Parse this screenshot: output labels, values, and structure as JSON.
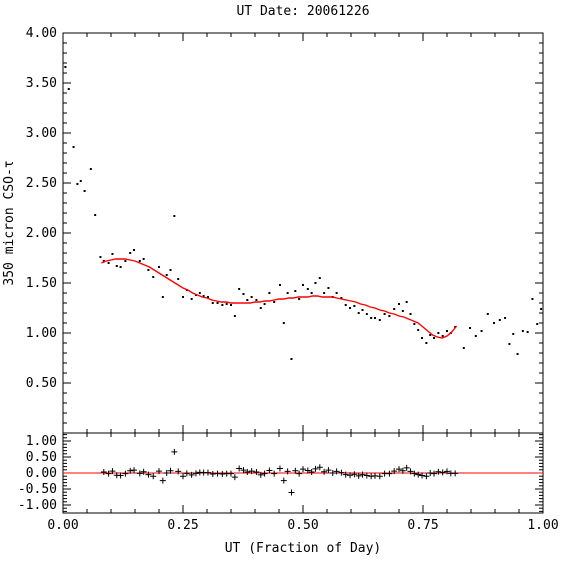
{
  "chart_data": [
    {
      "type": "scatter",
      "title": "UT Date: 20061226",
      "ylabel": "350 micron CSO-τ",
      "xlim": [
        0.0,
        1.0
      ],
      "ylim": [
        0.0,
        4.0
      ],
      "y_ticks": [
        "4.00",
        "3.50",
        "3.00",
        "2.50",
        "2.00",
        "1.50",
        "1.00",
        "0.50"
      ],
      "grid": false,
      "colors": {
        "points": "#000000",
        "fit": "#ff0000"
      },
      "series": [
        {
          "points": [
            [
              0.005,
              3.66
            ],
            [
              0.012,
              3.44
            ],
            [
              0.022,
              2.86
            ],
            [
              0.03,
              2.49
            ],
            [
              0.037,
              2.52
            ],
            [
              0.045,
              2.42
            ],
            [
              0.058,
              2.64
            ],
            [
              0.067,
              2.18
            ],
            [
              0.078,
              1.76
            ],
            [
              0.085,
              1.72
            ],
            [
              0.095,
              1.7
            ],
            [
              0.103,
              1.79
            ],
            [
              0.112,
              1.67
            ],
            [
              0.12,
              1.66
            ],
            [
              0.13,
              1.72
            ],
            [
              0.14,
              1.8
            ],
            [
              0.148,
              1.83
            ],
            [
              0.16,
              1.72
            ],
            [
              0.168,
              1.74
            ],
            [
              0.178,
              1.63
            ],
            [
              0.188,
              1.56
            ],
            [
              0.2,
              1.66
            ],
            [
              0.208,
              1.36
            ],
            [
              0.216,
              1.58
            ],
            [
              0.224,
              1.63
            ],
            [
              0.232,
              2.17
            ],
            [
              0.24,
              1.54
            ],
            [
              0.25,
              1.36
            ],
            [
              0.258,
              1.43
            ],
            [
              0.268,
              1.34
            ],
            [
              0.277,
              1.38
            ],
            [
              0.285,
              1.4
            ],
            [
              0.293,
              1.37
            ],
            [
              0.302,
              1.36
            ],
            [
              0.312,
              1.3
            ],
            [
              0.322,
              1.3
            ],
            [
              0.332,
              1.28
            ],
            [
              0.341,
              1.29
            ],
            [
              0.35,
              1.28
            ],
            [
              0.358,
              1.17
            ],
            [
              0.367,
              1.44
            ],
            [
              0.376,
              1.39
            ],
            [
              0.384,
              1.33
            ],
            [
              0.393,
              1.36
            ],
            [
              0.403,
              1.33
            ],
            [
              0.412,
              1.25
            ],
            [
              0.42,
              1.29
            ],
            [
              0.43,
              1.4
            ],
            [
              0.44,
              1.31
            ],
            [
              0.452,
              1.48
            ],
            [
              0.46,
              1.1
            ],
            [
              0.468,
              1.4
            ],
            [
              0.476,
              0.74
            ],
            [
              0.484,
              1.42
            ],
            [
              0.492,
              1.34
            ],
            [
              0.5,
              1.48
            ],
            [
              0.51,
              1.44
            ],
            [
              0.518,
              1.4
            ],
            [
              0.526,
              1.5
            ],
            [
              0.535,
              1.55
            ],
            [
              0.544,
              1.4
            ],
            [
              0.553,
              1.45
            ],
            [
              0.562,
              1.36
            ],
            [
              0.57,
              1.4
            ],
            [
              0.58,
              1.35
            ],
            [
              0.589,
              1.28
            ],
            [
              0.598,
              1.25
            ],
            [
              0.607,
              1.27
            ],
            [
              0.616,
              1.2
            ],
            [
              0.624,
              1.23
            ],
            [
              0.633,
              1.19
            ],
            [
              0.642,
              1.15
            ],
            [
              0.65,
              1.15
            ],
            [
              0.66,
              1.13
            ],
            [
              0.67,
              1.19
            ],
            [
              0.68,
              1.17
            ],
            [
              0.69,
              1.24
            ],
            [
              0.7,
              1.29
            ],
            [
              0.708,
              1.22
            ],
            [
              0.716,
              1.31
            ],
            [
              0.724,
              1.19
            ],
            [
              0.732,
              1.09
            ],
            [
              0.74,
              1.03
            ],
            [
              0.748,
              0.95
            ],
            [
              0.757,
              0.9
            ],
            [
              0.765,
              0.98
            ],
            [
              0.773,
              0.95
            ],
            [
              0.782,
              1.0
            ],
            [
              0.791,
              0.97
            ],
            [
              0.8,
              1.02
            ],
            [
              0.808,
              1.0
            ],
            [
              0.817,
              1.06
            ],
            [
              0.835,
              0.85
            ],
            [
              0.848,
              1.05
            ],
            [
              0.86,
              0.97
            ],
            [
              0.872,
              1.02
            ],
            [
              0.885,
              1.19
            ],
            [
              0.898,
              1.1
            ],
            [
              0.91,
              1.13
            ],
            [
              0.921,
              1.15
            ],
            [
              0.93,
              0.89
            ],
            [
              0.938,
              0.99
            ],
            [
              0.947,
              0.79
            ],
            [
              0.958,
              1.02
            ],
            [
              0.968,
              1.01
            ],
            [
              0.978,
              1.34
            ],
            [
              0.988,
              1.09
            ],
            [
              0.996,
              1.24
            ]
          ]
        },
        {
          "type": "line",
          "points": [
            [
              0.08,
              1.7
            ],
            [
              0.09,
              1.72
            ],
            [
              0.1,
              1.73
            ],
            [
              0.11,
              1.74
            ],
            [
              0.12,
              1.74
            ],
            [
              0.13,
              1.74
            ],
            [
              0.14,
              1.73
            ],
            [
              0.15,
              1.72
            ],
            [
              0.16,
              1.7
            ],
            [
              0.17,
              1.68
            ],
            [
              0.18,
              1.66
            ],
            [
              0.19,
              1.63
            ],
            [
              0.2,
              1.6
            ],
            [
              0.21,
              1.57
            ],
            [
              0.22,
              1.54
            ],
            [
              0.23,
              1.51
            ],
            [
              0.24,
              1.48
            ],
            [
              0.25,
              1.45
            ],
            [
              0.26,
              1.43
            ],
            [
              0.27,
              1.4
            ],
            [
              0.28,
              1.38
            ],
            [
              0.29,
              1.36
            ],
            [
              0.3,
              1.35
            ],
            [
              0.31,
              1.33
            ],
            [
              0.32,
              1.32
            ],
            [
              0.33,
              1.31
            ],
            [
              0.34,
              1.31
            ],
            [
              0.35,
              1.3
            ],
            [
              0.36,
              1.3
            ],
            [
              0.37,
              1.3
            ],
            [
              0.38,
              1.3
            ],
            [
              0.39,
              1.3
            ],
            [
              0.4,
              1.31
            ],
            [
              0.41,
              1.31
            ],
            [
              0.42,
              1.32
            ],
            [
              0.43,
              1.32
            ],
            [
              0.44,
              1.33
            ],
            [
              0.45,
              1.34
            ],
            [
              0.46,
              1.34
            ],
            [
              0.47,
              1.35
            ],
            [
              0.48,
              1.35
            ],
            [
              0.49,
              1.36
            ],
            [
              0.5,
              1.36
            ],
            [
              0.51,
              1.36
            ],
            [
              0.52,
              1.37
            ],
            [
              0.53,
              1.37
            ],
            [
              0.54,
              1.36
            ],
            [
              0.55,
              1.36
            ],
            [
              0.56,
              1.36
            ],
            [
              0.57,
              1.35
            ],
            [
              0.58,
              1.34
            ],
            [
              0.59,
              1.33
            ],
            [
              0.6,
              1.32
            ],
            [
              0.61,
              1.31
            ],
            [
              0.62,
              1.29
            ],
            [
              0.63,
              1.28
            ],
            [
              0.64,
              1.26
            ],
            [
              0.65,
              1.25
            ],
            [
              0.66,
              1.23
            ],
            [
              0.67,
              1.22
            ],
            [
              0.68,
              1.2
            ],
            [
              0.69,
              1.19
            ],
            [
              0.7,
              1.17
            ],
            [
              0.71,
              1.16
            ],
            [
              0.72,
              1.14
            ],
            [
              0.73,
              1.12
            ],
            [
              0.74,
              1.1
            ],
            [
              0.75,
              1.06
            ],
            [
              0.76,
              1.02
            ],
            [
              0.77,
              0.98
            ],
            [
              0.78,
              0.96
            ],
            [
              0.79,
              0.95
            ],
            [
              0.8,
              0.97
            ],
            [
              0.81,
              1.01
            ],
            [
              0.82,
              1.07
            ]
          ]
        }
      ]
    },
    {
      "type": "scatter",
      "xlabel": "UT (Fraction of Day)",
      "xlim": [
        0.0,
        1.0
      ],
      "ylim": [
        -1.25,
        1.25
      ],
      "x_ticks": [
        "0.00",
        "0.25",
        "0.50",
        "0.75",
        "1.00"
      ],
      "y_ticks": [
        "1.00",
        "0.50",
        "0.00",
        "-0.50",
        "-1.00"
      ],
      "baseline": 0.0,
      "grid": false,
      "colors": {
        "points": "#000000",
        "baseline": "#ff0000"
      },
      "series": [
        {
          "points": [
            [
              0.085,
              0.03
            ],
            [
              0.095,
              -0.02
            ],
            [
              0.103,
              0.06
            ],
            [
              0.112,
              -0.07
            ],
            [
              0.12,
              -0.08
            ],
            [
              0.13,
              -0.02
            ],
            [
              0.14,
              0.07
            ],
            [
              0.148,
              0.09
            ],
            [
              0.16,
              -0.01
            ],
            [
              0.168,
              0.04
            ],
            [
              0.178,
              -0.05
            ],
            [
              0.188,
              -0.1
            ],
            [
              0.2,
              0.06
            ],
            [
              0.208,
              -0.24
            ],
            [
              0.216,
              0.0
            ],
            [
              0.224,
              0.07
            ],
            [
              0.232,
              0.66
            ],
            [
              0.24,
              0.05
            ],
            [
              0.25,
              -0.1
            ],
            [
              0.258,
              -0.01
            ],
            [
              0.268,
              -0.06
            ],
            [
              0.277,
              -0.01
            ],
            [
              0.285,
              0.02
            ],
            [
              0.293,
              0.01
            ],
            [
              0.302,
              0.01
            ],
            [
              0.312,
              -0.03
            ],
            [
              0.322,
              -0.02
            ],
            [
              0.332,
              -0.03
            ],
            [
              0.341,
              -0.02
            ],
            [
              0.35,
              -0.02
            ],
            [
              0.358,
              -0.13
            ],
            [
              0.367,
              0.14
            ],
            [
              0.376,
              0.09
            ],
            [
              0.384,
              0.03
            ],
            [
              0.393,
              0.06
            ],
            [
              0.403,
              0.03
            ],
            [
              0.412,
              -0.06
            ],
            [
              0.42,
              -0.02
            ],
            [
              0.43,
              0.08
            ],
            [
              0.44,
              -0.02
            ],
            [
              0.452,
              0.14
            ],
            [
              0.46,
              -0.24
            ],
            [
              0.468,
              0.05
            ],
            [
              0.476,
              -0.61
            ],
            [
              0.484,
              0.07
            ],
            [
              0.492,
              -0.02
            ],
            [
              0.5,
              0.12
            ],
            [
              0.51,
              0.08
            ],
            [
              0.518,
              0.03
            ],
            [
              0.526,
              0.13
            ],
            [
              0.535,
              0.18
            ],
            [
              0.544,
              0.04
            ],
            [
              0.553,
              0.09
            ],
            [
              0.562,
              0.0
            ],
            [
              0.57,
              0.05
            ],
            [
              0.58,
              0.01
            ],
            [
              0.589,
              -0.05
            ],
            [
              0.598,
              -0.07
            ],
            [
              0.607,
              -0.04
            ],
            [
              0.616,
              -0.09
            ],
            [
              0.624,
              -0.05
            ],
            [
              0.633,
              -0.08
            ],
            [
              0.642,
              -0.1
            ],
            [
              0.65,
              -0.09
            ],
            [
              0.66,
              -0.1
            ],
            [
              0.67,
              -0.02
            ],
            [
              0.68,
              -0.02
            ],
            [
              0.69,
              0.06
            ],
            [
              0.7,
              0.12
            ],
            [
              0.708,
              0.07
            ],
            [
              0.716,
              0.16
            ],
            [
              0.724,
              0.05
            ],
            [
              0.732,
              -0.02
            ],
            [
              0.74,
              -0.05
            ],
            [
              0.748,
              -0.08
            ],
            [
              0.757,
              -0.1
            ],
            [
              0.765,
              0.0
            ],
            [
              0.773,
              -0.02
            ],
            [
              0.782,
              0.04
            ],
            [
              0.791,
              0.02
            ],
            [
              0.8,
              0.05
            ],
            [
              0.808,
              -0.01
            ],
            [
              0.817,
              -0.01
            ]
          ]
        }
      ]
    }
  ]
}
